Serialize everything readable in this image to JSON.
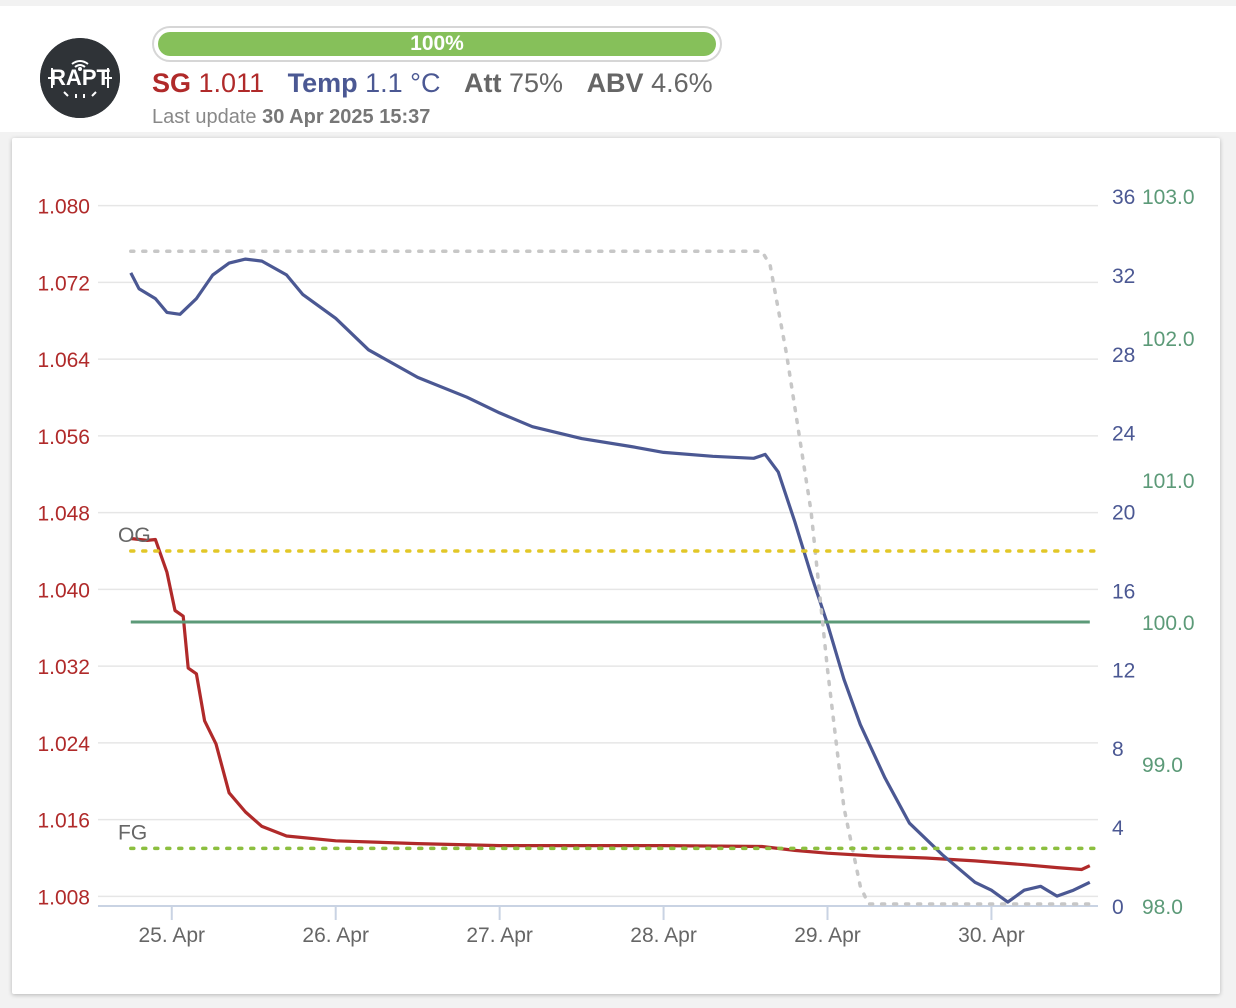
{
  "app": {
    "logo_text": "RAPT",
    "progress": {
      "value_pct": 100,
      "label": "100%"
    },
    "stats": {
      "sg_label": "SG",
      "sg_value": "1.011",
      "temp_label": "Temp",
      "temp_value": "1.1 °C",
      "att_label": "Att",
      "att_value": "75%",
      "abv_label": "ABV",
      "abv_value": "4.6%"
    },
    "last_update_label": "Last update",
    "last_update_value": "30 Apr 2025 15:37"
  },
  "colors": {
    "sg": "#b02a2a",
    "temp": "#4b5893",
    "battery": "#5c9a78",
    "og_line": "#e2c728",
    "fg_line": "#8cbf3f",
    "dotted": "#c7c7c7",
    "grid": "#e6e6e6",
    "progress": "#86c05a"
  },
  "chart_data": {
    "type": "line",
    "x_tick_labels": [
      "25. Apr",
      "26. Apr",
      "27. Apr",
      "28. Apr",
      "29. Apr",
      "30. Apr"
    ],
    "x_ticks_day": [
      25,
      26,
      27,
      28,
      29,
      30
    ],
    "x_range_day": [
      24.55,
      30.65
    ],
    "y_left": {
      "range": [
        1.007,
        1.081
      ],
      "ticks": [
        1.08,
        1.072,
        1.064,
        1.056,
        1.048,
        1.04,
        1.032,
        1.024,
        1.016,
        1.008
      ],
      "tick_labels": [
        "1.080",
        "1.072",
        "1.064",
        "1.056",
        "1.048",
        "1.040",
        "1.032",
        "1.024",
        "1.016",
        "1.008"
      ]
    },
    "y_right_temp": {
      "range": [
        0,
        36
      ],
      "ticks": [
        36,
        32,
        28,
        24,
        20,
        16,
        12,
        8,
        4,
        0
      ],
      "tick_labels": [
        "36",
        "32",
        "28",
        "24",
        "20",
        "16",
        "12",
        "8",
        "4",
        "0"
      ]
    },
    "y_right_battery": {
      "range": [
        98.0,
        103.0
      ],
      "ticks": [
        103.0,
        102.0,
        101.0,
        100.0,
        99.0,
        98.0
      ],
      "tick_labels": [
        "103.0",
        "102.0",
        "101.0",
        "100.0",
        "99.0",
        "98.0"
      ]
    },
    "reference_lines": [
      {
        "label": "OG",
        "value": 1.044
      },
      {
        "label": "FG",
        "value": 1.013
      }
    ],
    "series": [
      {
        "axis": "sg",
        "points": [
          [
            24.75,
            1.0453
          ],
          [
            24.85,
            1.0451
          ],
          [
            24.9,
            1.0452
          ],
          [
            24.97,
            1.0418
          ],
          [
            25.02,
            1.0378
          ],
          [
            25.07,
            1.0372
          ],
          [
            25.1,
            1.0318
          ],
          [
            25.15,
            1.0312
          ],
          [
            25.2,
            1.0263
          ],
          [
            25.27,
            1.0239
          ],
          [
            25.35,
            1.0188
          ],
          [
            25.45,
            1.0168
          ],
          [
            25.55,
            1.0153
          ],
          [
            25.7,
            1.0143
          ],
          [
            26.0,
            1.0138
          ],
          [
            26.5,
            1.0135
          ],
          [
            27.0,
            1.0133
          ],
          [
            27.5,
            1.0133
          ],
          [
            28.0,
            1.0133
          ],
          [
            28.6,
            1.0132
          ],
          [
            28.8,
            1.0128
          ],
          [
            29.0,
            1.0125
          ],
          [
            29.3,
            1.0122
          ],
          [
            29.6,
            1.012
          ],
          [
            29.9,
            1.0117
          ],
          [
            30.2,
            1.0113
          ],
          [
            30.4,
            1.011
          ],
          [
            30.55,
            1.0108
          ],
          [
            30.6,
            1.0112
          ]
        ]
      },
      {
        "axis": "temp",
        "points": [
          [
            24.75,
            32.1
          ],
          [
            24.8,
            31.3
          ],
          [
            24.9,
            30.8
          ],
          [
            24.97,
            30.1
          ],
          [
            25.05,
            30.0
          ],
          [
            25.15,
            30.8
          ],
          [
            25.25,
            32.0
          ],
          [
            25.35,
            32.6
          ],
          [
            25.45,
            32.8
          ],
          [
            25.55,
            32.7
          ],
          [
            25.7,
            32.0
          ],
          [
            25.8,
            31.0
          ],
          [
            26.0,
            29.8
          ],
          [
            26.2,
            28.2
          ],
          [
            26.5,
            26.8
          ],
          [
            26.8,
            25.8
          ],
          [
            27.0,
            25.0
          ],
          [
            27.2,
            24.3
          ],
          [
            27.5,
            23.7
          ],
          [
            27.8,
            23.3
          ],
          [
            28.0,
            23.0
          ],
          [
            28.3,
            22.8
          ],
          [
            28.55,
            22.7
          ],
          [
            28.62,
            22.9
          ],
          [
            28.7,
            22.0
          ],
          [
            28.8,
            19.5
          ],
          [
            28.9,
            16.8
          ],
          [
            29.0,
            14.3
          ],
          [
            29.1,
            11.5
          ],
          [
            29.2,
            9.2
          ],
          [
            29.35,
            6.5
          ],
          [
            29.5,
            4.2
          ],
          [
            29.7,
            2.6
          ],
          [
            29.9,
            1.2
          ],
          [
            30.0,
            0.8
          ],
          [
            30.1,
            0.2
          ],
          [
            30.2,
            0.8
          ],
          [
            30.3,
            1.0
          ],
          [
            30.4,
            0.5
          ],
          [
            30.5,
            0.8
          ],
          [
            30.6,
            1.2
          ]
        ]
      },
      {
        "axis": "battery",
        "points": [
          [
            24.75,
            100.0
          ],
          [
            30.6,
            100.0
          ]
        ]
      },
      {
        "axis": "temp",
        "style": "dotted",
        "points": [
          [
            24.75,
            33.2
          ],
          [
            28.6,
            33.2
          ],
          [
            28.65,
            32.5
          ],
          [
            28.75,
            28.0
          ],
          [
            28.9,
            20.0
          ],
          [
            29.0,
            12.0
          ],
          [
            29.1,
            5.0
          ],
          [
            29.2,
            1.0
          ],
          [
            29.25,
            0.1
          ],
          [
            30.6,
            0.1
          ]
        ]
      }
    ]
  }
}
